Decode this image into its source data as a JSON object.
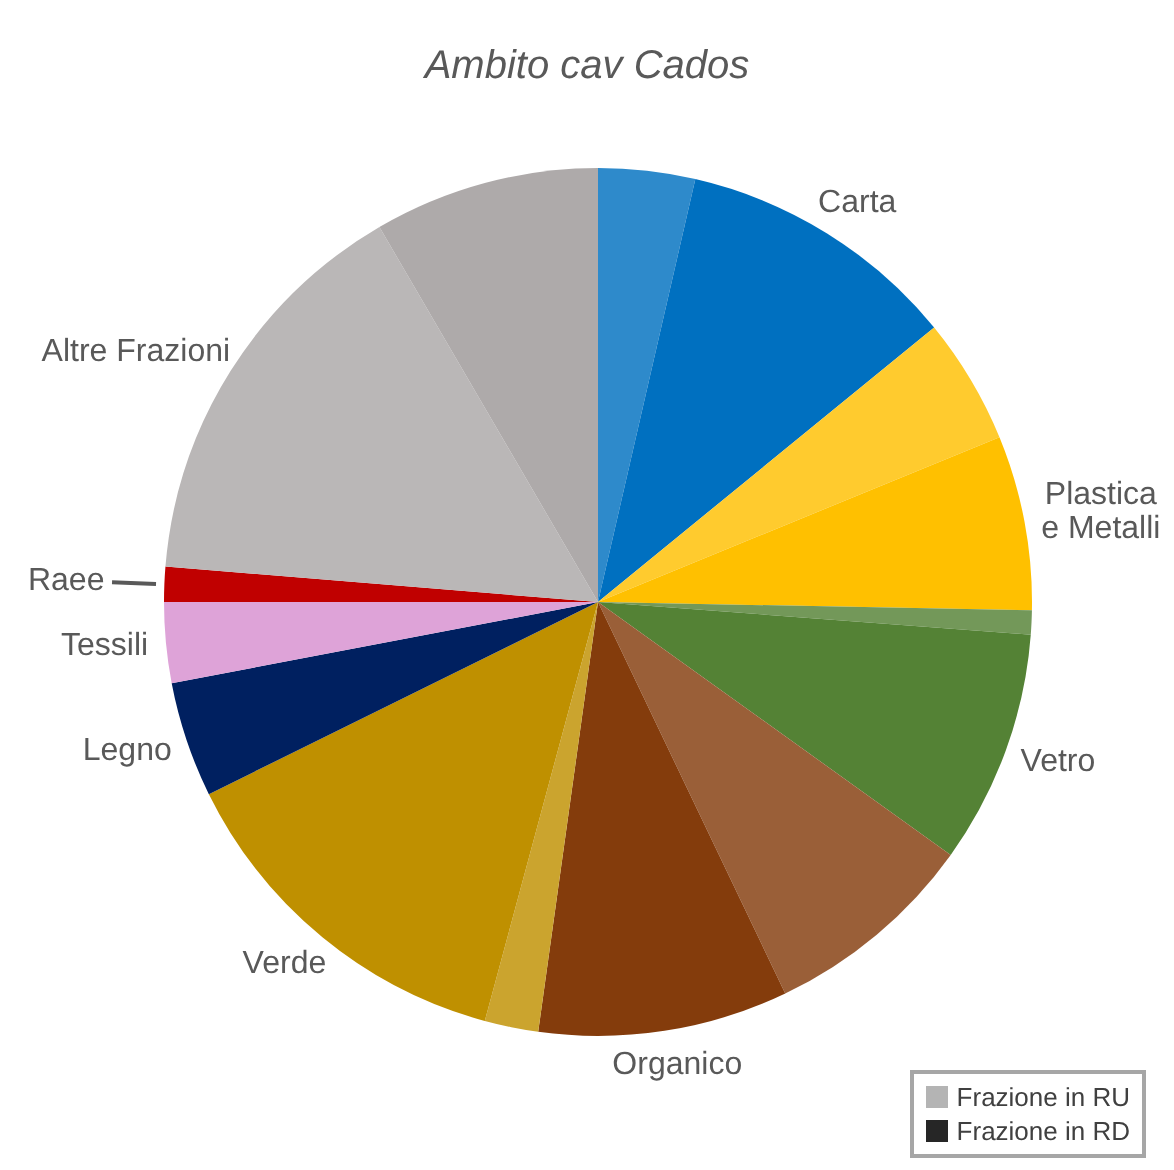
{
  "chart_data": {
    "type": "pie",
    "title": "Ambito cav Cados",
    "categories": [
      null,
      "Carta",
      null,
      "Plastica e Metalli",
      null,
      "Vetro",
      null,
      "Organico",
      null,
      "Verde",
      "Legno",
      "Tessili",
      "Raee",
      "Altre Frazioni",
      null
    ],
    "values": [
      3.6,
      10.5,
      4.7,
      6.5,
      0.9,
      8.7,
      8.0,
      9.3,
      2.0,
      13.5,
      4.3,
      3.0,
      1.3,
      15.3,
      8.4
    ],
    "colors": [
      "#2e8acb",
      "#0070c0",
      "#ffcb2e",
      "#ffc000",
      "#739859",
      "#548235",
      "#9a5f38",
      "#843c0c",
      "#cba42e",
      "#bf9000",
      "#002060",
      "#dea3d8",
      "#c00000",
      "#bab7b7",
      "#aeaaaa"
    ],
    "annotations": [
      "Frazione in RU",
      "Frazione in RD"
    ]
  }
}
